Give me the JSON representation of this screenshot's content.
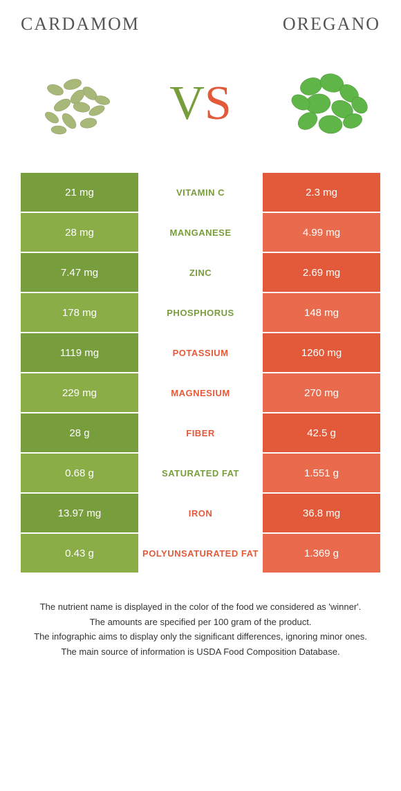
{
  "left_food": {
    "name": "Cardamom",
    "color": "#789d3d",
    "alt_color": "#8aad47"
  },
  "right_food": {
    "name": "Oregano",
    "color": "#e35a3b",
    "alt_color": "#e96a4d"
  },
  "vs_left_color": "#789d3d",
  "vs_right_color": "#e35a3b",
  "nutrient_winner_colors": {
    "left": "#789d3d",
    "right": "#e35a3b"
  },
  "rows": [
    {
      "left": "21 mg",
      "mid": "Vitamin C",
      "right": "2.3 mg",
      "winner": "left"
    },
    {
      "left": "28 mg",
      "mid": "Manganese",
      "right": "4.99 mg",
      "winner": "left"
    },
    {
      "left": "7.47 mg",
      "mid": "Zinc",
      "right": "2.69 mg",
      "winner": "left"
    },
    {
      "left": "178 mg",
      "mid": "Phosphorus",
      "right": "148 mg",
      "winner": "left"
    },
    {
      "left": "1119 mg",
      "mid": "Potassium",
      "right": "1260 mg",
      "winner": "right"
    },
    {
      "left": "229 mg",
      "mid": "Magnesium",
      "right": "270 mg",
      "winner": "right"
    },
    {
      "left": "28 g",
      "mid": "Fiber",
      "right": "42.5 g",
      "winner": "right"
    },
    {
      "left": "0.68 g",
      "mid": "Saturated fat",
      "right": "1.551 g",
      "winner": "left"
    },
    {
      "left": "13.97 mg",
      "mid": "Iron",
      "right": "36.8 mg",
      "winner": "right"
    },
    {
      "left": "0.43 g",
      "mid": "Polyunsaturated fat",
      "right": "1.369 g",
      "winner": "right"
    }
  ],
  "footer": [
    "The nutrient name is displayed in the color of the food we considered as 'winner'.",
    "The amounts are specified per 100 gram of the product.",
    "The infographic aims to display only the significant differences, ignoring minor ones.",
    "The main source of information is USDA Food Composition Database."
  ]
}
